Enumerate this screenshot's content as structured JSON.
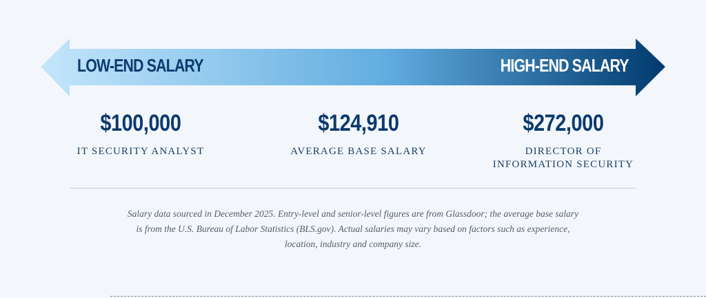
{
  "arrow": {
    "low_label": "LOW-END SALARY",
    "high_label": "HIGH-END SALARY",
    "gradient_colors": [
      "#bfe3fa",
      "#62ade0",
      "#023a6f"
    ]
  },
  "salaries": [
    {
      "amount": "$100,000",
      "role": "IT SECURITY ANALYST"
    },
    {
      "amount": "$124,910",
      "role": "AVERAGE BASE SALARY"
    },
    {
      "amount": "$272,000",
      "role_lines": [
        "DIRECTOR OF",
        "INFORMATION SECURITY"
      ]
    }
  ],
  "footnote": "Salary data sourced in December 2025. Entry-level and senior-level figures are from Glassdoor; the average base salary is from the U.S. Bureau of Labor Statistics (BLS.gov). Actual salaries may vary based on factors such as experience, location, industry and company size.",
  "colors": {
    "text_primary": "#0b3a6e",
    "background": "#f3f7fc"
  }
}
